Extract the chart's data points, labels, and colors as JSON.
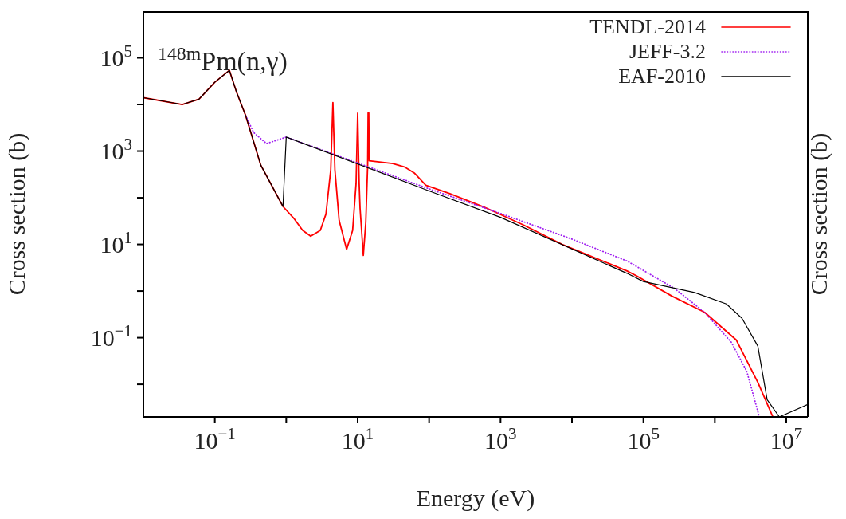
{
  "chart_data": {
    "type": "line",
    "title": "$^{148m}$Pm(n,γ)",
    "xlabel": "Energy (eV)",
    "ylabel": "Cross section (b)",
    "y2label": "Cross section (b)",
    "log": "xy",
    "legend": "top right",
    "marker": "none",
    "xlim": [
      0.01,
      20000000
    ],
    "ylim": [
      0.002,
      1000000
    ],
    "xticks": [
      {
        "value": 0.1,
        "label": "10$^{−1}$"
      },
      {
        "value": 1,
        "label": null
      },
      {
        "value": 10,
        "label": "10$^{1}$"
      },
      {
        "value": 100,
        "label": null
      },
      {
        "value": 1000,
        "label": "10$^{3}$"
      },
      {
        "value": 10000,
        "label": null
      },
      {
        "value": 100000,
        "label": "10$^{5}$"
      },
      {
        "value": 1000000,
        "label": null
      },
      {
        "value": 10000000,
        "label": "10$^{7}$"
      }
    ],
    "yticks": [
      {
        "value": 0.01,
        "label": null
      },
      {
        "value": 0.1,
        "label": "10$^{−1}$"
      },
      {
        "value": 1,
        "label": null
      },
      {
        "value": 10,
        "label": "10$^{1}$"
      },
      {
        "value": 100,
        "label": null
      },
      {
        "value": 1000,
        "label": "10$^{3}$"
      },
      {
        "value": 10000,
        "label": null
      },
      {
        "value": 100000,
        "label": "10$^{5}$"
      }
    ],
    "series": [
      {
        "name": "TENDL-2014",
        "color": "#ff0000",
        "line_style": "solid",
        "x": [
          0.01,
          0.035,
          0.06,
          0.1,
          0.16,
          0.2,
          0.27,
          0.44,
          0.9,
          1.3,
          1.7,
          2.2,
          3.0,
          3.6,
          4.2,
          4.5,
          4.8,
          5.5,
          7,
          8.5,
          9.5,
          10,
          10.5,
          10.8,
          12,
          13,
          13.8,
          14,
          14.3,
          14.5,
          31,
          45,
          62,
          90,
          195,
          590,
          2100,
          7300,
          59000,
          81000,
          250000,
          720000,
          2000000,
          4000000,
          6500000
        ],
        "values": [
          14000,
          10000,
          13000,
          30000,
          54000,
          19000,
          5800,
          500,
          65,
          35,
          20,
          15,
          20,
          45,
          400,
          11000,
          400,
          33,
          7.8,
          20,
          200,
          6500,
          200,
          60,
          5.8,
          30,
          500,
          6600,
          6600,
          620,
          540,
          460,
          340,
          186,
          123,
          63,
          26,
          10,
          2.7,
          2.1,
          0.78,
          0.35,
          0.089,
          0.011,
          0.002
        ]
      },
      {
        "name": "JEFF-3.2",
        "color": "#a020f0",
        "line_style": "dotted",
        "x": [
          0.27,
          0.35,
          0.53,
          1.0,
          100,
          1000,
          10000,
          59000,
          270000,
          720000,
          1700000,
          2800000,
          4200000
        ],
        "values": [
          5800,
          2500,
          1450,
          2000,
          155,
          46,
          13,
          4.4,
          1.15,
          0.35,
          0.08,
          0.019,
          0.002
        ]
      },
      {
        "name": "EAF-2010",
        "color": "#000000",
        "line_style": "solid",
        "x": [
          0.01,
          0.035,
          0.06,
          0.1,
          0.16,
          0.2,
          0.27,
          0.44,
          0.9,
          1.0,
          100,
          1000,
          59000,
          100000,
          520000,
          1450000,
          2400000,
          4000000,
          5400000,
          8000000,
          20000000
        ],
        "values": [
          14000,
          10000,
          13000,
          30000,
          54000,
          19000,
          5800,
          500,
          65,
          2000,
          140,
          38,
          2.4,
          1.6,
          0.93,
          0.53,
          0.26,
          0.066,
          0.0047,
          0.002,
          0.0037
        ]
      }
    ]
  }
}
